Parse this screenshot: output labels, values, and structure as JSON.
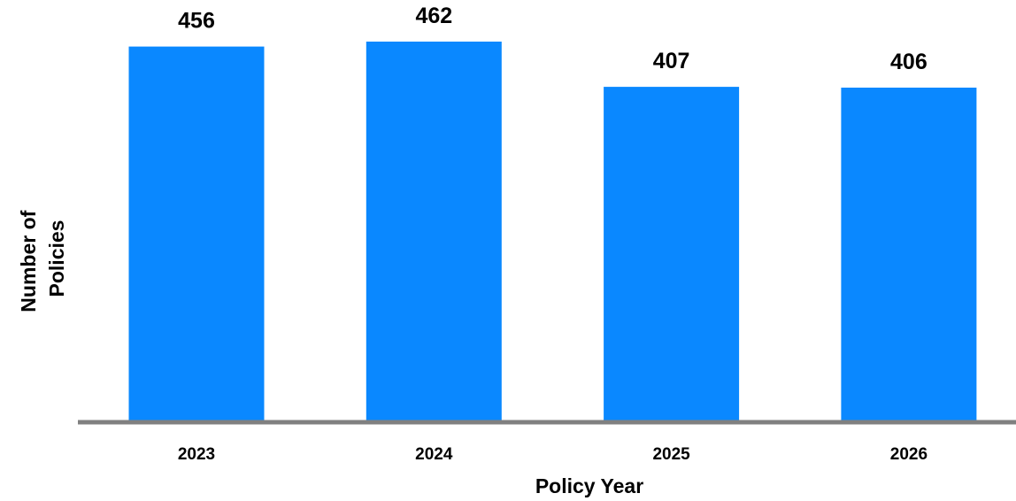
{
  "chart_data": {
    "type": "bar",
    "categories": [
      "2023",
      "2024",
      "2025",
      "2026"
    ],
    "values": [
      456,
      462,
      407,
      406
    ],
    "data_labels": [
      "456",
      "462",
      "407",
      "406"
    ],
    "title": "",
    "xlabel": "Policy Year",
    "ylabel_lines": [
      "Number of",
      "Policies"
    ],
    "ylim": [
      0,
      462
    ],
    "grid": false,
    "legend": "none",
    "bar_color": "#0A88FF",
    "axis_color": "#808080"
  }
}
